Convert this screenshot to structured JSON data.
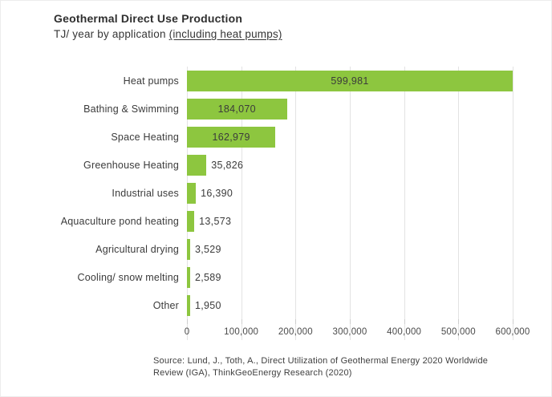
{
  "header": {
    "title": "Geothermal Direct Use Production",
    "subtitle_prefix": "TJ/ year by application ",
    "subtitle_underlined": "(including heat pumps)"
  },
  "chart_data": {
    "type": "bar",
    "orientation": "horizontal",
    "title": "Geothermal Direct Use Production",
    "subtitle": "TJ/ year by application (including heat pumps)",
    "xlabel": "",
    "ylabel": "",
    "categories": [
      "Heat pumps",
      "Bathing & Swimming",
      "Space Heating",
      "Greenhouse Heating",
      "Industrial uses",
      "Aquaculture pond heating",
      "Agricultural drying",
      "Cooling/ snow melting",
      "Other"
    ],
    "values": [
      599981,
      184070,
      162979,
      35826,
      16390,
      13573,
      3529,
      2589,
      1950
    ],
    "value_labels": [
      "599,981",
      "184,070",
      "162,979",
      "35,826",
      "16,390",
      "13,573",
      "3,529",
      "2,589",
      "1,950"
    ],
    "xlim": [
      0,
      600000
    ],
    "x_ticks": [
      0,
      100000,
      200000,
      300000,
      400000,
      500000,
      600000
    ],
    "x_tick_labels": [
      "0",
      "100,000",
      "200,000",
      "300,000",
      "400,000",
      "500,000",
      "600,000"
    ],
    "grid": true,
    "legend": "none",
    "inside_label_threshold": 0.2
  },
  "colors": {
    "bar": "#8dc63f",
    "grid": "#e3e3e3",
    "tick": "#cfcfcf",
    "text": "#3b3b3b",
    "background": "#ffffff"
  },
  "footer": {
    "source_lines": [
      "Source: Lund, J., Toth, A., Direct Utilization of Geothermal Energy 2020 Worldwide",
      "Review (IGA), ThinkGeoEnergy Research (2020)"
    ]
  }
}
